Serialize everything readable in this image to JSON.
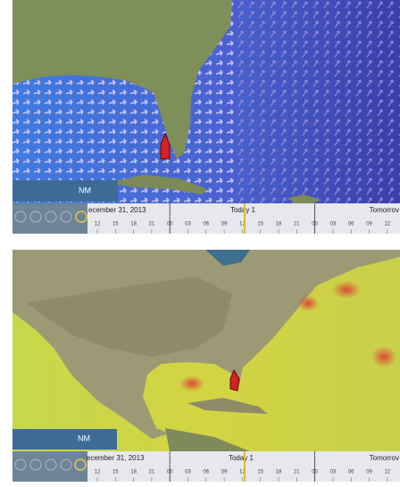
{
  "panels": [
    {
      "scale_label": "NM",
      "date": "ecember 31, 2013",
      "today": "Today 1",
      "tomorrow": "Tomorrov",
      "hours": [
        "12",
        "15",
        "18",
        "21",
        "00",
        "03",
        "06",
        "09",
        "12",
        "15",
        "18",
        "21",
        "00",
        "03",
        "06",
        "09",
        "12"
      ]
    },
    {
      "scale_label": "NM",
      "date": "ecember 31, 2013",
      "today": "Today 1",
      "tomorrow": "Tomorrov",
      "hours": [
        "12",
        "15",
        "18",
        "21",
        "00",
        "03",
        "06",
        "09",
        "12",
        "15",
        "18",
        "21",
        "00",
        "03",
        "06",
        "09",
        "12"
      ]
    }
  ]
}
